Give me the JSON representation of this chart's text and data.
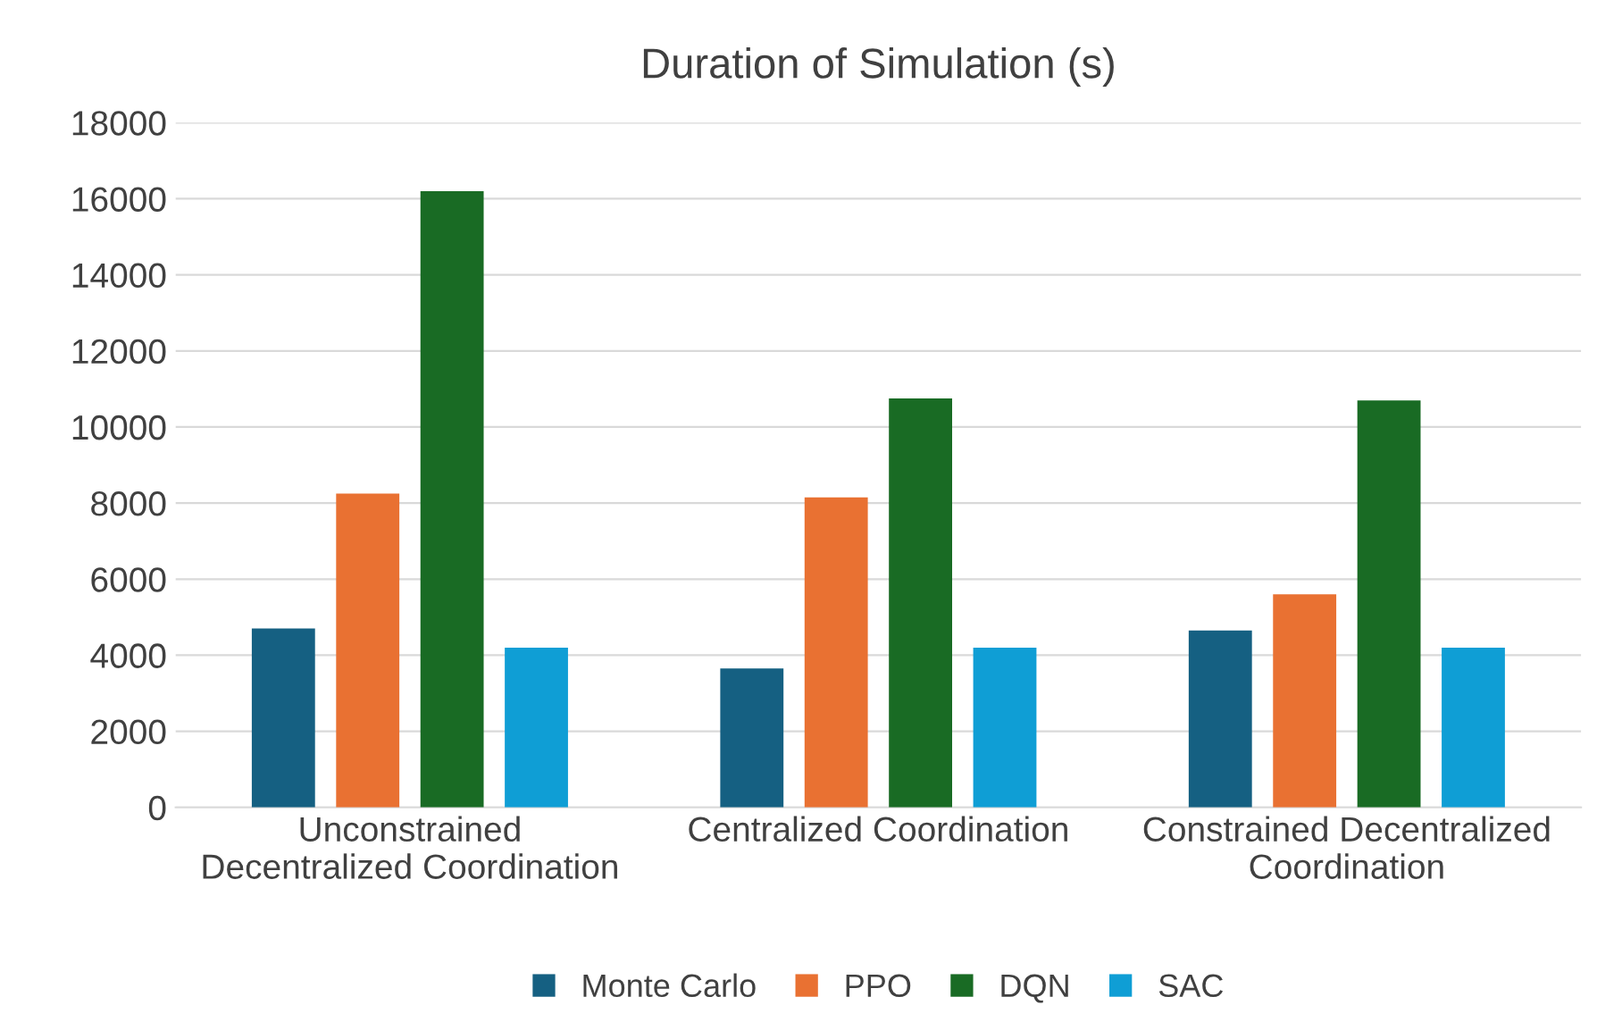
{
  "chart_data": {
    "type": "bar",
    "title": "Duration of Simulation (s)",
    "categories": [
      "Unconstrained\nDecentralized Coordination",
      "Centralized Coordination",
      "Constrained Decentralized\nCoordination"
    ],
    "series": [
      {
        "name": "Monte Carlo",
        "color": "#156082",
        "values": [
          4700,
          3650,
          4650
        ]
      },
      {
        "name": "PPO",
        "color": "#e97132",
        "values": [
          8250,
          8150,
          5600
        ]
      },
      {
        "name": "DQN",
        "color": "#196b24",
        "values": [
          16200,
          10750,
          10700
        ]
      },
      {
        "name": "SAC",
        "color": "#0f9ed5",
        "values": [
          4200,
          4200,
          4200
        ]
      }
    ],
    "ylim": [
      0,
      18000
    ],
    "yticks": [
      0,
      2000,
      4000,
      6000,
      8000,
      10000,
      12000,
      14000,
      16000,
      18000
    ],
    "grid": "y",
    "legend": "bottom"
  }
}
